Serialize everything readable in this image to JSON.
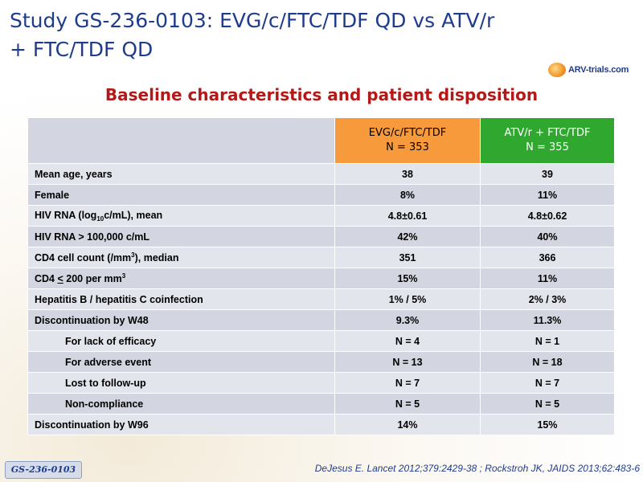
{
  "title": {
    "line1": "Study GS-236-0103: EVG/c/FTC/TDF QD vs ATV/r",
    "line2": "+ FTC/TDF QD"
  },
  "logo": {
    "text": "ARV-trials.com",
    "icon": "arv-trials-logo-icon"
  },
  "subtitle": "Baseline characteristics and patient disposition",
  "table": {
    "headers": [
      {
        "line1": "EVG/c/FTC/TDF",
        "line2": "N = 353",
        "color": "#f79a3c"
      },
      {
        "line1": "ATV/r + FTC/TDF",
        "line2": "N = 355",
        "color": "#30a830"
      }
    ],
    "rows": [
      {
        "label": "Mean age, years",
        "evg": "38",
        "atv": "39"
      },
      {
        "label": "Female",
        "evg": "8%",
        "atv": "11%"
      },
      {
        "label_pre": "HIV RNA (log",
        "label_sub": "10",
        "label_post": "c/mL), mean",
        "evg": "4.8±0.61",
        "atv": "4.8±0.62"
      },
      {
        "label": "HIV RNA > 100,000 c/mL",
        "evg": "42%",
        "atv": "40%"
      },
      {
        "label_pre": "CD4 cell count (/mm",
        "label_sup": "3",
        "label_post": "), median",
        "evg": "351",
        "atv": "366"
      },
      {
        "label_pre": "CD4 ",
        "label_u": "<",
        "label_mid": " 200 per mm",
        "label_sup": "3",
        "evg": "15%",
        "atv": "11%"
      },
      {
        "label": "Hepatitis B / hepatitis C coinfection",
        "evg": "1% / 5%",
        "atv": "2% / 3%"
      },
      {
        "label": "Discontinuation by W48",
        "evg": "9.3%",
        "atv": "11.3%"
      },
      {
        "label": "For lack of efficacy",
        "evg": "N = 4",
        "atv": "N = 1"
      },
      {
        "label": "For adverse event",
        "evg": "N = 13",
        "atv": "N = 18"
      },
      {
        "label": "Lost to follow-up",
        "evg": "N = 7",
        "atv": "N = 7"
      },
      {
        "label": "Non-compliance",
        "evg": "N = 5",
        "atv": "N = 5"
      },
      {
        "label": "Discontinuation by W96",
        "evg": "14%",
        "atv": "15%"
      }
    ]
  },
  "footer": {
    "tag": "GS-236-0103",
    "reference": "DeJesus E. Lancet 2012;379:2429-38 ; Rockstroh JK, JAIDS 2013;62:483-6"
  }
}
